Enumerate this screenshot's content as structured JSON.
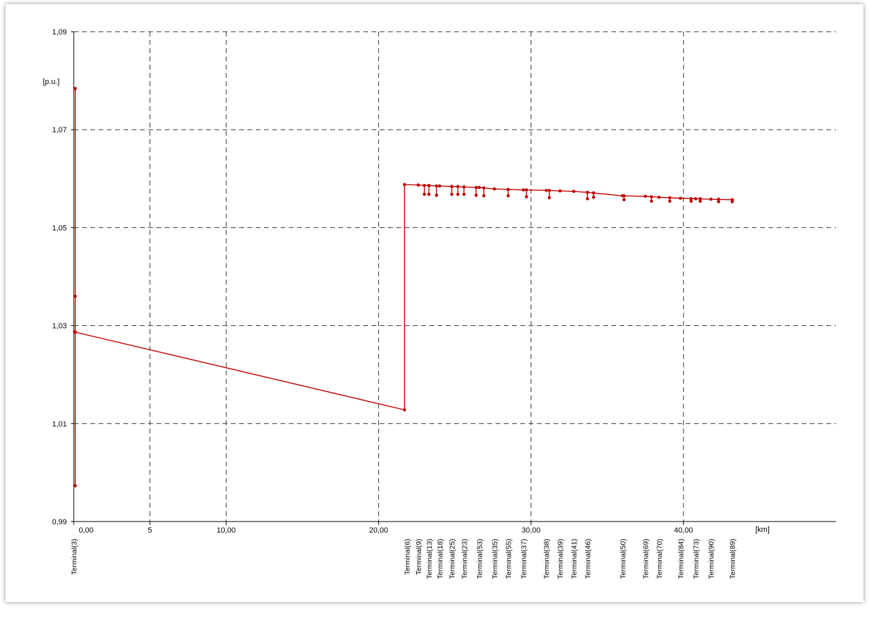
{
  "chart_data": {
    "type": "line",
    "x_label": "[km]",
    "y_label": "[p.u.]",
    "xlim": [
      0,
      50
    ],
    "ylim": [
      0.99,
      1.09
    ],
    "xticks": [
      {
        "value": 0,
        "label": "0,00"
      },
      {
        "value": 10,
        "label": "10,00"
      },
      {
        "value": 20,
        "label": "20,00"
      },
      {
        "value": 30,
        "label": "30,00"
      },
      {
        "value": 40,
        "label": "40,00"
      },
      5
    ],
    "yticks": [
      {
        "value": 0.99,
        "label": "0,99"
      },
      {
        "value": 1.01,
        "label": "1,01"
      },
      {
        "value": 1.03,
        "label": "1,03"
      },
      {
        "value": 1.05,
        "label": "1,05"
      },
      {
        "value": 1.07,
        "label": "1,07"
      },
      {
        "value": 1.09,
        "label": "1,09"
      }
    ],
    "grid": true,
    "terminal_labels": [
      "Terminal(3)",
      "Terminal(6)",
      "Terminal(9)",
      "Terminal(13)",
      "Terminal(18)",
      "Terminal(25)",
      "Terminal(23)",
      "Terminal(53)",
      "Terminal(35)",
      "Terminal(55)",
      "Terminal(37)",
      "Terminal(38)",
      "Terminal(39)",
      "Terminal(41)",
      "Terminal(46)",
      "Terminal(50)",
      "Terminal(69)",
      "Terminal(70)",
      "Terminal(84)",
      "Terminal(73)",
      "Terminal(90)",
      "Terminal(89)"
    ],
    "terminal_x": [
      0,
      21.85,
      22.6,
      23.3,
      24.0,
      24.8,
      25.6,
      26.6,
      27.6,
      28.5,
      29.5,
      31.0,
      31.9,
      32.8,
      33.7,
      36.0,
      37.5,
      38.4,
      39.8,
      40.8,
      41.8,
      43.2
    ],
    "series": [
      {
        "color": "#c00000",
        "x": [
          0.1,
          0.1,
          0.1,
          0.1,
          null,
          0.05,
          21.7,
          21.7,
          22.6,
          23.3,
          24.0,
          24.8,
          25.6,
          26.6,
          27.6,
          28.5,
          29.5,
          31.0,
          31.9,
          32.8,
          33.7,
          36.0,
          37.5,
          38.4,
          39.8,
          40.8,
          41.8,
          43.2,
          null,
          23.0,
          23.0,
          null,
          23.3,
          23.3,
          null,
          23.8,
          23.8,
          null,
          24.8,
          24.8,
          null,
          25.2,
          25.2,
          null,
          25.6,
          25.6,
          null,
          26.4,
          26.4,
          null,
          26.9,
          26.9,
          null,
          28.5,
          28.5,
          null,
          29.7,
          29.7,
          null,
          31.2,
          31.2,
          null,
          33.7,
          33.7,
          null,
          34.1,
          34.1,
          null,
          36.1,
          36.1,
          null,
          37.9,
          37.9,
          null,
          39.1,
          39.1,
          null,
          40.5,
          40.5,
          null,
          41.1,
          41.1,
          null,
          42.3,
          42.3,
          null,
          43.2,
          43.2
        ],
        "values": [
          0.9973,
          1.0287,
          1.036,
          1.0784,
          null,
          1.0287,
          1.0128,
          1.0588,
          1.0587,
          1.0586,
          1.0585,
          1.0584,
          1.0583,
          1.0582,
          1.0579,
          1.0578,
          1.0577,
          1.0576,
          1.0575,
          1.0574,
          1.0572,
          1.0565,
          1.0564,
          1.0562,
          1.056,
          1.0559,
          1.0558,
          1.0557,
          null,
          1.0586,
          1.0568,
          null,
          1.0586,
          1.0568,
          null,
          1.0585,
          1.0566,
          null,
          1.0584,
          1.0568,
          null,
          1.0584,
          1.0568,
          null,
          1.0583,
          1.0568,
          null,
          1.0582,
          1.0566,
          null,
          1.0581,
          1.0565,
          null,
          1.0578,
          1.0565,
          null,
          1.0577,
          1.0563,
          null,
          1.0576,
          1.0561,
          null,
          1.0572,
          1.0559,
          null,
          1.0571,
          1.0562,
          null,
          1.0565,
          1.0557,
          null,
          1.0563,
          1.0554,
          null,
          1.0561,
          1.0554,
          null,
          1.0559,
          1.0554,
          null,
          1.0559,
          1.0554,
          null,
          1.0558,
          1.0553,
          null,
          1.0557,
          1.0553
        ]
      }
    ]
  }
}
